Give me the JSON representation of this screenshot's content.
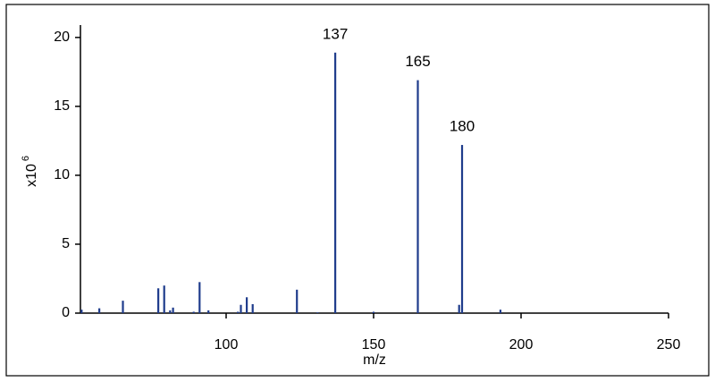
{
  "chart_data": {
    "type": "bar",
    "x_label": "m/z",
    "y_label": "x10",
    "y_label_exponent": "6",
    "x": [
      51,
      57,
      65,
      77,
      79,
      81,
      82,
      89,
      91,
      94,
      104,
      105,
      107,
      109,
      124,
      131,
      137,
      150,
      165,
      179,
      180,
      193
    ],
    "values": [
      0.25,
      0.35,
      0.9,
      1.8,
      2.0,
      0.2,
      0.4,
      0.1,
      2.25,
      0.2,
      0.1,
      0.6,
      1.15,
      0.65,
      1.7,
      0.05,
      18.9,
      0.1,
      16.9,
      0.6,
      12.2,
      0.25
    ],
    "color": "#1f3c8c",
    "annotations": [
      {
        "text": "137",
        "x": 137
      },
      {
        "text": "165",
        "x": 165
      },
      {
        "text": "180",
        "x": 180
      }
    ],
    "xlim": [
      50.6,
      250
    ],
    "xticks": [
      100,
      150,
      200,
      250
    ],
    "ylim": [
      0,
      20.9
    ],
    "yticks": [
      0,
      5,
      10,
      15,
      20
    ],
    "grid": false
  }
}
